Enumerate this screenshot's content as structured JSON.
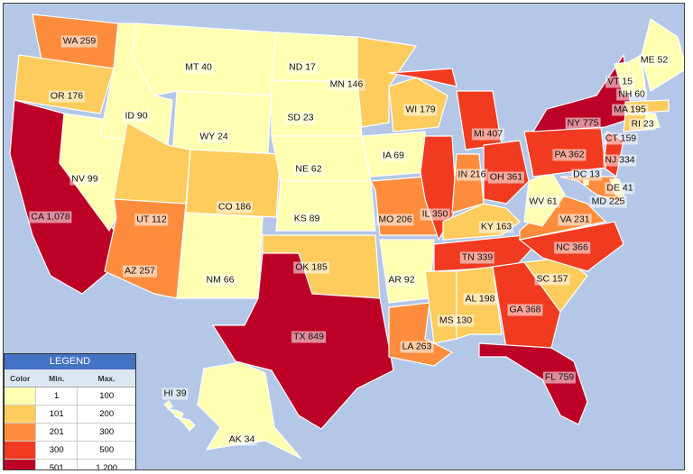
{
  "legend": {
    "title": "LEGEND",
    "headers": [
      "Color",
      "Min.",
      "Max."
    ],
    "bins": [
      {
        "min": "1",
        "max": "100",
        "color": "#ffffb2"
      },
      {
        "min": "101",
        "max": "200",
        "color": "#fecc5c"
      },
      {
        "min": "201",
        "max": "300",
        "color": "#fd8d3c"
      },
      {
        "min": "300",
        "max": "500",
        "color": "#f03b20"
      },
      {
        "min": "501",
        "max": "1,200",
        "color": "#bd0026"
      }
    ]
  },
  "background_color": "#b4c7e7",
  "states": [
    {
      "abbr": "WA",
      "value": "259",
      "label": "WA 259",
      "bin": 2
    },
    {
      "abbr": "OR",
      "value": "176",
      "label": "OR 176",
      "bin": 1
    },
    {
      "abbr": "CA",
      "value": "1,078",
      "label": "CA 1,078",
      "bin": 4
    },
    {
      "abbr": "NV",
      "value": "99",
      "label": "NV 99",
      "bin": 0
    },
    {
      "abbr": "ID",
      "value": "90",
      "label": "ID 90",
      "bin": 0
    },
    {
      "abbr": "MT",
      "value": "40",
      "label": "MT 40",
      "bin": 0
    },
    {
      "abbr": "WY",
      "value": "24",
      "label": "WY 24",
      "bin": 0
    },
    {
      "abbr": "UT",
      "value": "112",
      "label": "UT 112",
      "bin": 1
    },
    {
      "abbr": "CO",
      "value": "186",
      "label": "CO 186",
      "bin": 1
    },
    {
      "abbr": "AZ",
      "value": "257",
      "label": "AZ 257",
      "bin": 2
    },
    {
      "abbr": "NM",
      "value": "66",
      "label": "NM 66",
      "bin": 0
    },
    {
      "abbr": "ND",
      "value": "17",
      "label": "ND 17",
      "bin": 0
    },
    {
      "abbr": "SD",
      "value": "23",
      "label": "SD 23",
      "bin": 0
    },
    {
      "abbr": "NE",
      "value": "62",
      "label": "NE 62",
      "bin": 0
    },
    {
      "abbr": "KS",
      "value": "89",
      "label": "KS 89",
      "bin": 0
    },
    {
      "abbr": "OK",
      "value": "185",
      "label": "OK 185",
      "bin": 1
    },
    {
      "abbr": "TX",
      "value": "849",
      "label": "TX 849",
      "bin": 4
    },
    {
      "abbr": "MN",
      "value": "146",
      "label": "MN 146",
      "bin": 1
    },
    {
      "abbr": "IA",
      "value": "69",
      "label": "IA 69",
      "bin": 0
    },
    {
      "abbr": "MO",
      "value": "206",
      "label": "MO 206",
      "bin": 2
    },
    {
      "abbr": "AR",
      "value": "92",
      "label": "AR 92",
      "bin": 0
    },
    {
      "abbr": "LA",
      "value": "263",
      "label": "LA 263",
      "bin": 2
    },
    {
      "abbr": "WI",
      "value": "179",
      "label": "WI 179",
      "bin": 1
    },
    {
      "abbr": "IL",
      "value": "350",
      "label": "IL 350",
      "bin": 3
    },
    {
      "abbr": "MI",
      "value": "407",
      "label": "MI 407",
      "bin": 3
    },
    {
      "abbr": "IN",
      "value": "216",
      "label": "IN 216",
      "bin": 2
    },
    {
      "abbr": "OH",
      "value": "361",
      "label": "OH 361",
      "bin": 3
    },
    {
      "abbr": "KY",
      "value": "163",
      "label": "KY 163",
      "bin": 1
    },
    {
      "abbr": "TN",
      "value": "339",
      "label": "TN 339",
      "bin": 3
    },
    {
      "abbr": "MS",
      "value": "130",
      "label": "MS 130",
      "bin": 1
    },
    {
      "abbr": "AL",
      "value": "198",
      "label": "AL 198",
      "bin": 1
    },
    {
      "abbr": "GA",
      "value": "368",
      "label": "GA 368",
      "bin": 3
    },
    {
      "abbr": "FL",
      "value": "759",
      "label": "FL 759",
      "bin": 4
    },
    {
      "abbr": "SC",
      "value": "157",
      "label": "SC 157",
      "bin": 1
    },
    {
      "abbr": "NC",
      "value": "366",
      "label": "NC 366",
      "bin": 3
    },
    {
      "abbr": "VA",
      "value": "231",
      "label": "VA 231",
      "bin": 2
    },
    {
      "abbr": "WV",
      "value": "61",
      "label": "WV 61",
      "bin": 0
    },
    {
      "abbr": "MD",
      "value": "225",
      "label": "MD 225",
      "bin": 2
    },
    {
      "abbr": "DE",
      "value": "41",
      "label": "DE 41",
      "bin": 0
    },
    {
      "abbr": "DC",
      "value": "13",
      "label": "DC 13",
      "bin": 0
    },
    {
      "abbr": "NJ",
      "value": "334",
      "label": "NJ 334",
      "bin": 3
    },
    {
      "abbr": "PA",
      "value": "362",
      "label": "PA 362",
      "bin": 3
    },
    {
      "abbr": "NY",
      "value": "775",
      "label": "NY 775",
      "bin": 4
    },
    {
      "abbr": "CT",
      "value": "159",
      "label": "CT 159",
      "bin": 1
    },
    {
      "abbr": "RI",
      "value": "23",
      "label": "RI 23",
      "bin": 0
    },
    {
      "abbr": "MA",
      "value": "195",
      "label": "MA 195",
      "bin": 1
    },
    {
      "abbr": "NH",
      "value": "60",
      "label": "NH 60",
      "bin": 0
    },
    {
      "abbr": "VT",
      "value": "15",
      "label": "VT 15",
      "bin": 0
    },
    {
      "abbr": "ME",
      "value": "52",
      "label": "ME 52",
      "bin": 0
    },
    {
      "abbr": "HI",
      "value": "39",
      "label": "HI 39",
      "bin": 0
    },
    {
      "abbr": "AK",
      "value": "34",
      "label": "AK 34",
      "bin": 0
    }
  ]
}
